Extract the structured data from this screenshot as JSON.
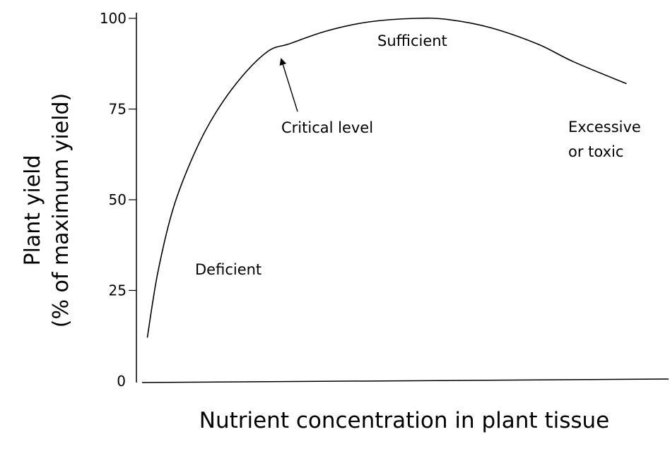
{
  "chart_data": {
    "type": "line",
    "title": "",
    "ylabel_lines": [
      "Plant yield",
      "(% of maximum yield)"
    ],
    "xlabel": "Nutrient concentration in plant tissue",
    "ylim": [
      0,
      100
    ],
    "yticks": [
      {
        "value": 0,
        "label": "0"
      },
      {
        "value": 25,
        "label": "25"
      },
      {
        "value": 50,
        "label": "50"
      },
      {
        "value": 75,
        "label": "75"
      },
      {
        "value": 100,
        "label": "100"
      }
    ],
    "xlim": [
      0,
      100
    ],
    "grid": false,
    "curve": {
      "x": [
        1,
        3,
        6,
        10,
        14,
        19,
        24,
        28,
        35,
        43,
        52,
        58,
        66,
        75,
        82,
        92
      ],
      "y": [
        12,
        30,
        48,
        63,
        74,
        84,
        91,
        93,
        96.5,
        99,
        100,
        99.7,
        97.5,
        93,
        88,
        82
      ]
    },
    "annotations": [
      {
        "id": "deficient",
        "text": "Deficient"
      },
      {
        "id": "critical",
        "text": "Critical level",
        "arrow": true
      },
      {
        "id": "sufficient",
        "text": "Sufficient"
      },
      {
        "id": "excessive-1",
        "text": "Excessive"
      },
      {
        "id": "excessive-2",
        "text": "or toxic"
      }
    ],
    "colors": {
      "line": "#000000",
      "text": "#000000",
      "background": "#ffffff"
    }
  }
}
